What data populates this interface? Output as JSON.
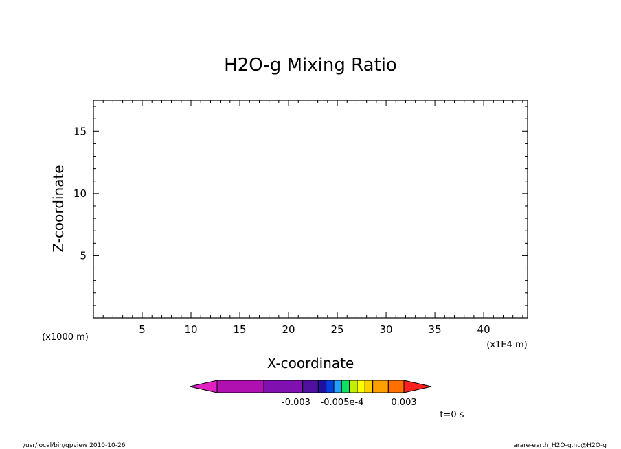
{
  "chart_data": {
    "type": "contour",
    "title": "H2O-g Mixing Ratio",
    "xlabel": "X-coordinate",
    "ylabel": "Z-coordinate",
    "x_unit": "(x1E4 m)",
    "y_unit": "(x1000 m)",
    "xlim": [
      0,
      44.5
    ],
    "ylim": [
      0,
      17.5
    ],
    "x_ticks": [
      5,
      10,
      15,
      20,
      25,
      30,
      35,
      40
    ],
    "y_ticks": [
      5,
      10,
      15
    ],
    "x_minor_step": 1,
    "y_minor_step": 1,
    "series": [],
    "colorbar": {
      "colors": [
        "#e020c0",
        "#b010b0",
        "#8010b0",
        "#5010a0",
        "#2010a0",
        "#0040e0",
        "#20a0ff",
        "#10e060",
        "#c0f000",
        "#ffff00",
        "#ffd000",
        "#ffa000",
        "#ff7000",
        "#ff2020"
      ],
      "labels": [
        "-0.003",
        "-0.005e-4",
        "0.003"
      ],
      "extend": "both"
    },
    "time_label": "t=0 s"
  },
  "footer": {
    "left": "/usr/local/bin/gpview   2010-10-26",
    "right": "arare-earth_H2O-g.nc@H2O-g"
  }
}
